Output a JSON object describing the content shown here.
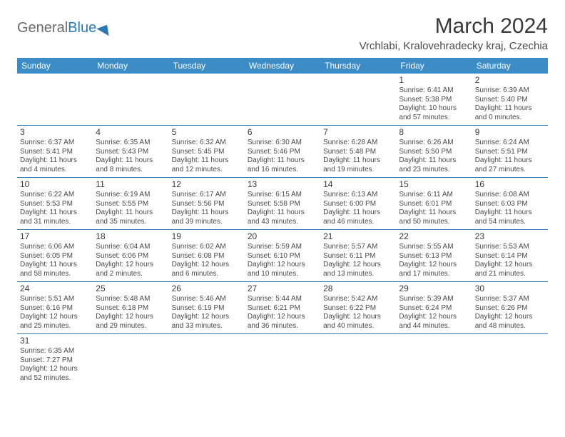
{
  "logo": {
    "general": "General",
    "blue": "Blue"
  },
  "header": {
    "month_title": "March 2024",
    "location": "Vrchlabi, Kralovehradecky kraj, Czechia"
  },
  "colors": {
    "header_bg": "#3b8bc6",
    "header_text": "#ffffff",
    "cell_border": "#2a7ab8",
    "text_color": "#4a4a4a",
    "logo_blue": "#2a7ab8"
  },
  "day_labels": [
    "Sunday",
    "Monday",
    "Tuesday",
    "Wednesday",
    "Thursday",
    "Friday",
    "Saturday"
  ],
  "weeks": [
    [
      null,
      null,
      null,
      null,
      null,
      {
        "n": "1",
        "sunrise": "Sunrise: 6:41 AM",
        "sunset": "Sunset: 5:38 PM",
        "daylight": "Daylight: 10 hours and 57 minutes."
      },
      {
        "n": "2",
        "sunrise": "Sunrise: 6:39 AM",
        "sunset": "Sunset: 5:40 PM",
        "daylight": "Daylight: 11 hours and 0 minutes."
      }
    ],
    [
      {
        "n": "3",
        "sunrise": "Sunrise: 6:37 AM",
        "sunset": "Sunset: 5:41 PM",
        "daylight": "Daylight: 11 hours and 4 minutes."
      },
      {
        "n": "4",
        "sunrise": "Sunrise: 6:35 AM",
        "sunset": "Sunset: 5:43 PM",
        "daylight": "Daylight: 11 hours and 8 minutes."
      },
      {
        "n": "5",
        "sunrise": "Sunrise: 6:32 AM",
        "sunset": "Sunset: 5:45 PM",
        "daylight": "Daylight: 11 hours and 12 minutes."
      },
      {
        "n": "6",
        "sunrise": "Sunrise: 6:30 AM",
        "sunset": "Sunset: 5:46 PM",
        "daylight": "Daylight: 11 hours and 16 minutes."
      },
      {
        "n": "7",
        "sunrise": "Sunrise: 6:28 AM",
        "sunset": "Sunset: 5:48 PM",
        "daylight": "Daylight: 11 hours and 19 minutes."
      },
      {
        "n": "8",
        "sunrise": "Sunrise: 6:26 AM",
        "sunset": "Sunset: 5:50 PM",
        "daylight": "Daylight: 11 hours and 23 minutes."
      },
      {
        "n": "9",
        "sunrise": "Sunrise: 6:24 AM",
        "sunset": "Sunset: 5:51 PM",
        "daylight": "Daylight: 11 hours and 27 minutes."
      }
    ],
    [
      {
        "n": "10",
        "sunrise": "Sunrise: 6:22 AM",
        "sunset": "Sunset: 5:53 PM",
        "daylight": "Daylight: 11 hours and 31 minutes."
      },
      {
        "n": "11",
        "sunrise": "Sunrise: 6:19 AM",
        "sunset": "Sunset: 5:55 PM",
        "daylight": "Daylight: 11 hours and 35 minutes."
      },
      {
        "n": "12",
        "sunrise": "Sunrise: 6:17 AM",
        "sunset": "Sunset: 5:56 PM",
        "daylight": "Daylight: 11 hours and 39 minutes."
      },
      {
        "n": "13",
        "sunrise": "Sunrise: 6:15 AM",
        "sunset": "Sunset: 5:58 PM",
        "daylight": "Daylight: 11 hours and 43 minutes."
      },
      {
        "n": "14",
        "sunrise": "Sunrise: 6:13 AM",
        "sunset": "Sunset: 6:00 PM",
        "daylight": "Daylight: 11 hours and 46 minutes."
      },
      {
        "n": "15",
        "sunrise": "Sunrise: 6:11 AM",
        "sunset": "Sunset: 6:01 PM",
        "daylight": "Daylight: 11 hours and 50 minutes."
      },
      {
        "n": "16",
        "sunrise": "Sunrise: 6:08 AM",
        "sunset": "Sunset: 6:03 PM",
        "daylight": "Daylight: 11 hours and 54 minutes."
      }
    ],
    [
      {
        "n": "17",
        "sunrise": "Sunrise: 6:06 AM",
        "sunset": "Sunset: 6:05 PM",
        "daylight": "Daylight: 11 hours and 58 minutes."
      },
      {
        "n": "18",
        "sunrise": "Sunrise: 6:04 AM",
        "sunset": "Sunset: 6:06 PM",
        "daylight": "Daylight: 12 hours and 2 minutes."
      },
      {
        "n": "19",
        "sunrise": "Sunrise: 6:02 AM",
        "sunset": "Sunset: 6:08 PM",
        "daylight": "Daylight: 12 hours and 6 minutes."
      },
      {
        "n": "20",
        "sunrise": "Sunrise: 5:59 AM",
        "sunset": "Sunset: 6:10 PM",
        "daylight": "Daylight: 12 hours and 10 minutes."
      },
      {
        "n": "21",
        "sunrise": "Sunrise: 5:57 AM",
        "sunset": "Sunset: 6:11 PM",
        "daylight": "Daylight: 12 hours and 13 minutes."
      },
      {
        "n": "22",
        "sunrise": "Sunrise: 5:55 AM",
        "sunset": "Sunset: 6:13 PM",
        "daylight": "Daylight: 12 hours and 17 minutes."
      },
      {
        "n": "23",
        "sunrise": "Sunrise: 5:53 AM",
        "sunset": "Sunset: 6:14 PM",
        "daylight": "Daylight: 12 hours and 21 minutes."
      }
    ],
    [
      {
        "n": "24",
        "sunrise": "Sunrise: 5:51 AM",
        "sunset": "Sunset: 6:16 PM",
        "daylight": "Daylight: 12 hours and 25 minutes."
      },
      {
        "n": "25",
        "sunrise": "Sunrise: 5:48 AM",
        "sunset": "Sunset: 6:18 PM",
        "daylight": "Daylight: 12 hours and 29 minutes."
      },
      {
        "n": "26",
        "sunrise": "Sunrise: 5:46 AM",
        "sunset": "Sunset: 6:19 PM",
        "daylight": "Daylight: 12 hours and 33 minutes."
      },
      {
        "n": "27",
        "sunrise": "Sunrise: 5:44 AM",
        "sunset": "Sunset: 6:21 PM",
        "daylight": "Daylight: 12 hours and 36 minutes."
      },
      {
        "n": "28",
        "sunrise": "Sunrise: 5:42 AM",
        "sunset": "Sunset: 6:22 PM",
        "daylight": "Daylight: 12 hours and 40 minutes."
      },
      {
        "n": "29",
        "sunrise": "Sunrise: 5:39 AM",
        "sunset": "Sunset: 6:24 PM",
        "daylight": "Daylight: 12 hours and 44 minutes."
      },
      {
        "n": "30",
        "sunrise": "Sunrise: 5:37 AM",
        "sunset": "Sunset: 6:26 PM",
        "daylight": "Daylight: 12 hours and 48 minutes."
      }
    ],
    [
      {
        "n": "31",
        "sunrise": "Sunrise: 6:35 AM",
        "sunset": "Sunset: 7:27 PM",
        "daylight": "Daylight: 12 hours and 52 minutes."
      },
      null,
      null,
      null,
      null,
      null,
      null
    ]
  ]
}
